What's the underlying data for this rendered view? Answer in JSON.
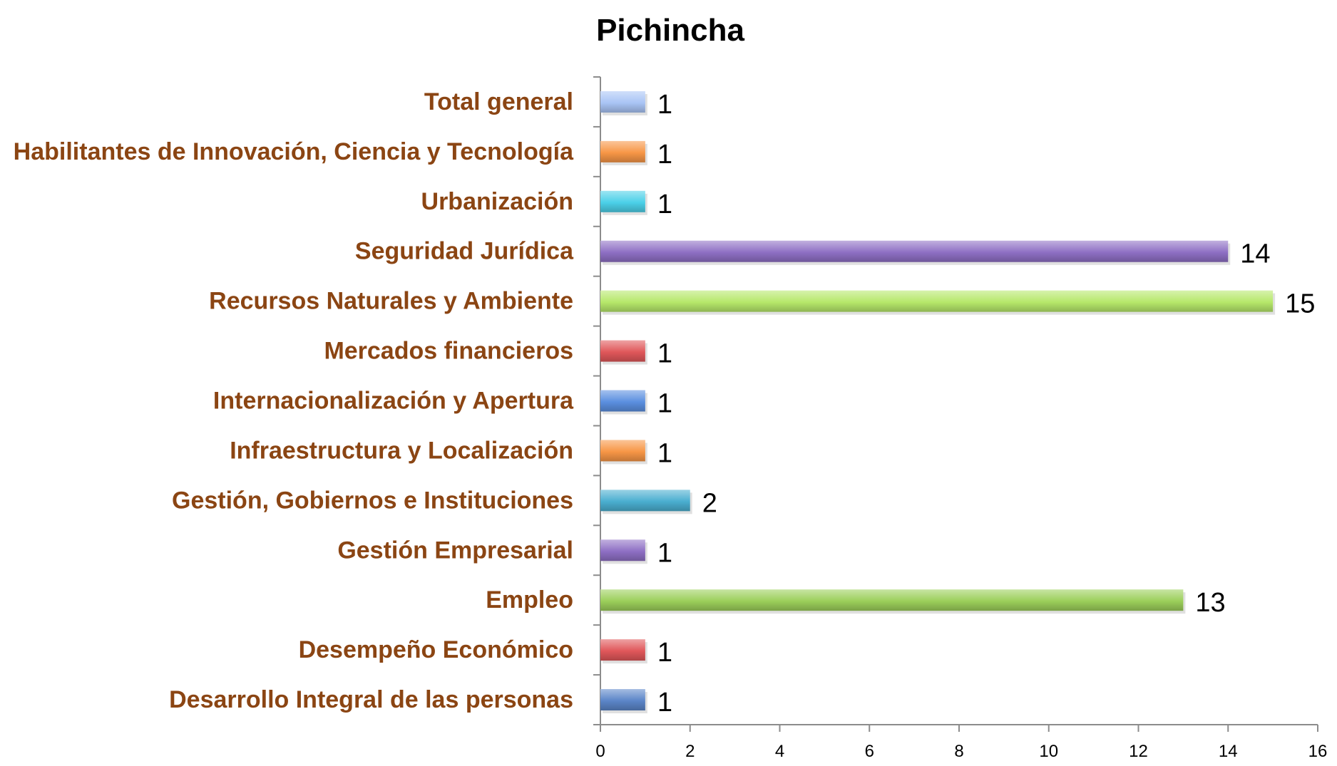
{
  "chart_data": {
    "type": "bar",
    "orientation": "horizontal",
    "title": "Pichincha",
    "xlabel": "",
    "ylabel": "",
    "xlim": [
      0,
      16
    ],
    "x_ticks": [
      "0",
      "2",
      "4",
      "6",
      "8",
      "10",
      "12",
      "14",
      "16"
    ],
    "grid": false,
    "legend": "none",
    "categories": [
      "Total general",
      "Habilitantes de Innovación, Ciencia y Tecnología",
      "Urbanización",
      "Seguridad Jurídica",
      "Recursos Naturales y Ambiente",
      "Mercados financieros",
      "Internacionalización y Apertura",
      "Infraestructura y Localización",
      "Gestión, Gobiernos e Instituciones",
      "Gestión Empresarial",
      "Empleo",
      "Desempeño Económico",
      "Desarrollo Integral de las personas"
    ],
    "values": [
      1,
      1,
      1,
      14,
      15,
      1,
      1,
      1,
      2,
      1,
      13,
      1,
      1
    ],
    "data_labels": [
      "1",
      "1",
      "1",
      "14",
      "15",
      "1",
      "1",
      "1",
      "2",
      "1",
      "13",
      "1",
      "1"
    ],
    "bar_colors": [
      "#a9c4f5",
      "#f79646",
      "#4bd0e8",
      "#8e6fc4",
      "#b6e86a",
      "#e0575a",
      "#5b8fe0",
      "#f79646",
      "#4aaed0",
      "#8e6fc4",
      "#9bcf5a",
      "#e0575a",
      "#5b85c8"
    ],
    "category_label_color": "#8B4513"
  }
}
